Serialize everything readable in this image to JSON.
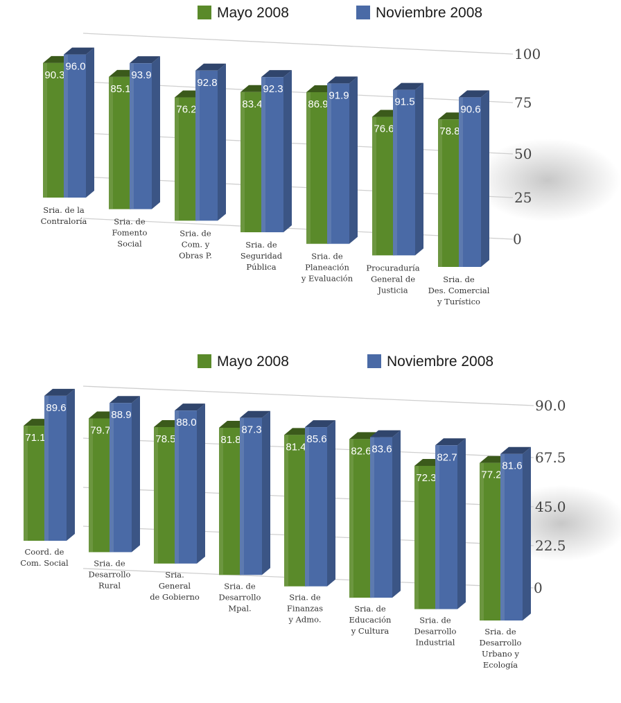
{
  "chart_data": [
    {
      "type": "bar",
      "title": "",
      "xlabel": "",
      "ylabel": "",
      "legend_position": "top",
      "ylim": [
        0,
        100
      ],
      "yticks": [
        "100",
        "75",
        "50",
        "25",
        "0"
      ],
      "categories": [
        [
          "Sria. de la",
          "Contraloría"
        ],
        [
          "Sria. de",
          "Fomento",
          "Social"
        ],
        [
          "Sria. de",
          "Com. y",
          "Obras P."
        ],
        [
          "Sria. de",
          "Seguridad",
          "Pública"
        ],
        [
          "Sria. de",
          "Planeación",
          "y Evaluación"
        ],
        [
          "Procuraduría",
          "General de",
          "Justicia"
        ],
        [
          "Sria. de",
          "Des. Comercial",
          "y Turístico"
        ]
      ],
      "series": [
        {
          "name": "Mayo 2008",
          "values": [
            90.3,
            85.1,
            76.2,
            83.4,
            86.9,
            76.6,
            78.8
          ],
          "labels": [
            "90.3",
            "85.1",
            "76.2",
            "83.4",
            "86.9",
            "76.6",
            "78.8"
          ],
          "color": "#5a8a2a"
        },
        {
          "name": "Noviembre 2008",
          "values": [
            96.0,
            93.9,
            92.8,
            92.3,
            91.9,
            91.5,
            90.6
          ],
          "labels": [
            "96.0",
            "93.9",
            "92.8",
            "92.3",
            "91.9",
            "91.5",
            "90.6"
          ],
          "color": "#4a6aa6"
        }
      ]
    },
    {
      "type": "bar",
      "title": "",
      "xlabel": "",
      "ylabel": "",
      "legend_position": "top",
      "ylim": [
        0,
        90
      ],
      "yticks": [
        "90.0",
        "67.5",
        "45.0",
        "22.5",
        "0"
      ],
      "categories": [
        [
          "Coord. de",
          "Com. Social"
        ],
        [
          "Sria. de",
          "Desarrollo",
          "Rural"
        ],
        [
          "Sria.",
          "General",
          "de Gobierno"
        ],
        [
          "Sria. de",
          "Desarrollo",
          "Mpal."
        ],
        [
          "Sria. de",
          "Finanzas",
          "y Admo."
        ],
        [
          "Sria. de",
          "Educación",
          "y Cultura"
        ],
        [
          "Sria. de",
          "Desarrollo",
          "Industrial"
        ],
        [
          "Sria. de",
          "Desarrollo",
          "Urbano y",
          "Ecología"
        ]
      ],
      "series": [
        {
          "name": "Mayo 2008",
          "values": [
            71.1,
            79.7,
            78.5,
            81.8,
            81.4,
            82.6,
            72.3,
            77.2
          ],
          "labels": [
            "71.1",
            "79.7",
            "78.5",
            "81.8",
            "81.4",
            "82.6",
            "72.3",
            "77.2"
          ],
          "color": "#5a8a2a"
        },
        {
          "name": "Noviembre 2008",
          "values": [
            89.6,
            88.9,
            88.0,
            87.3,
            85.6,
            83.6,
            82.7,
            81.6
          ],
          "labels": [
            "89.6",
            "88.9",
            "88.0",
            "87.3",
            "85.6",
            "83.6",
            "82.7",
            "81.6"
          ],
          "color": "#4a6aa6"
        }
      ]
    }
  ]
}
